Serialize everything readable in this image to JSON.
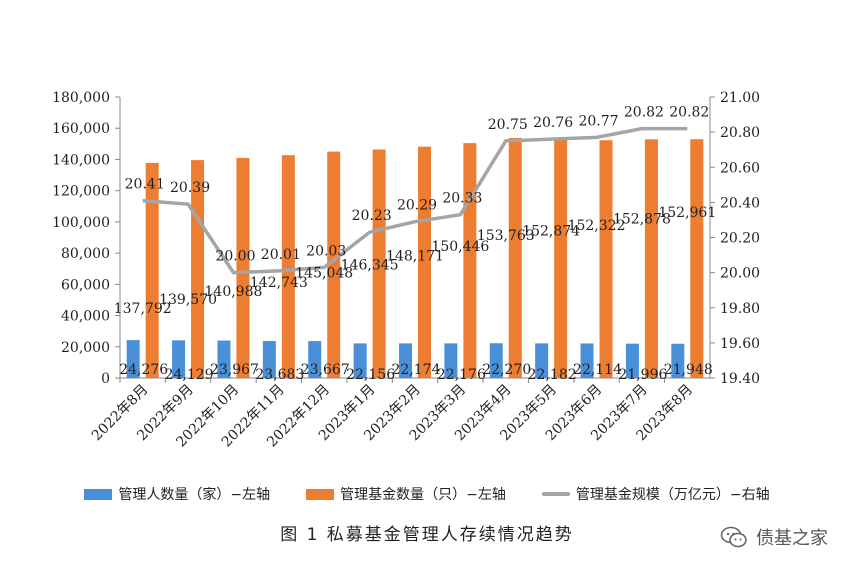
{
  "chart_data": {
    "type": "bar",
    "categories": [
      "2022年8月",
      "2022年9月",
      "2022年10月",
      "2022年11月",
      "2022年12月",
      "2023年1月",
      "2023年2月",
      "2023年3月",
      "2023年4月",
      "2023年5月",
      "2023年6月",
      "2023年7月",
      "2023年8月"
    ],
    "series": [
      {
        "name": "管理人数量（家）-左轴",
        "type": "bar",
        "axis": "left",
        "color": "#4a90d9",
        "values": [
          24276,
          24129,
          23967,
          23683,
          23667,
          22156,
          22174,
          22176,
          22270,
          22182,
          22114,
          21996,
          21948
        ],
        "labels": [
          "24,276",
          "24,129",
          "23,967",
          "23,683",
          "23,667",
          "22,156",
          "22,174",
          "22,176",
          "22,270",
          "22,182",
          "22,114",
          "21,996",
          "21,948"
        ]
      },
      {
        "name": "管理基金数量（只）-左轴",
        "type": "bar",
        "axis": "left",
        "color": "#ed7d31",
        "values": [
          137792,
          139570,
          140988,
          142743,
          145048,
          146345,
          148171,
          150446,
          153763,
          152874,
          152322,
          152878,
          152961
        ],
        "labels": [
          "137,792",
          "139,570",
          "140,988",
          "142,743",
          "145,048",
          "146,345",
          "148,171",
          "150,446",
          "153,763",
          "152,874",
          "152,322",
          "152,878",
          "152,961"
        ]
      },
      {
        "name": "管理基金规模（万亿元）-右轴",
        "type": "line",
        "axis": "right",
        "color": "#a5a5a5",
        "values": [
          20.41,
          20.39,
          20.0,
          20.01,
          20.03,
          20.23,
          20.29,
          20.33,
          20.75,
          20.76,
          20.77,
          20.82,
          20.82
        ],
        "labels": [
          "20.41",
          "20.39",
          "20.00",
          "20.01",
          "20.03",
          "20.23",
          "20.29",
          "20.33",
          "20.75",
          "20.76",
          "20.77",
          "20.82",
          "20.82"
        ]
      }
    ],
    "y_left": {
      "min": 0,
      "max": 180000,
      "step": 20000,
      "ticks": [
        "0",
        "20,000",
        "40,000",
        "60,000",
        "80,000",
        "100,000",
        "120,000",
        "140,000",
        "160,000",
        "180,000"
      ]
    },
    "y_right": {
      "min": 19.4,
      "max": 21.0,
      "step": 0.2,
      "ticks": [
        "19.40",
        "19.60",
        "19.80",
        "20.00",
        "20.20",
        "20.40",
        "20.60",
        "20.80",
        "21.00"
      ]
    },
    "grid": false,
    "legend_position": "bottom"
  },
  "legend": [
    {
      "label": "管理人数量（家）−左轴",
      "kind": "box",
      "color": "#4a90d9"
    },
    {
      "label": "管理基金数量（只）−左轴",
      "kind": "box",
      "color": "#ed7d31"
    },
    {
      "label": "管理基金规模（万亿元）−右轴",
      "kind": "line",
      "color": "#a5a5a5"
    }
  ],
  "caption": "图 1  私募基金管理人存续情况趋势",
  "watermark": {
    "text": "债基之家",
    "icon": "wechat-icon"
  }
}
